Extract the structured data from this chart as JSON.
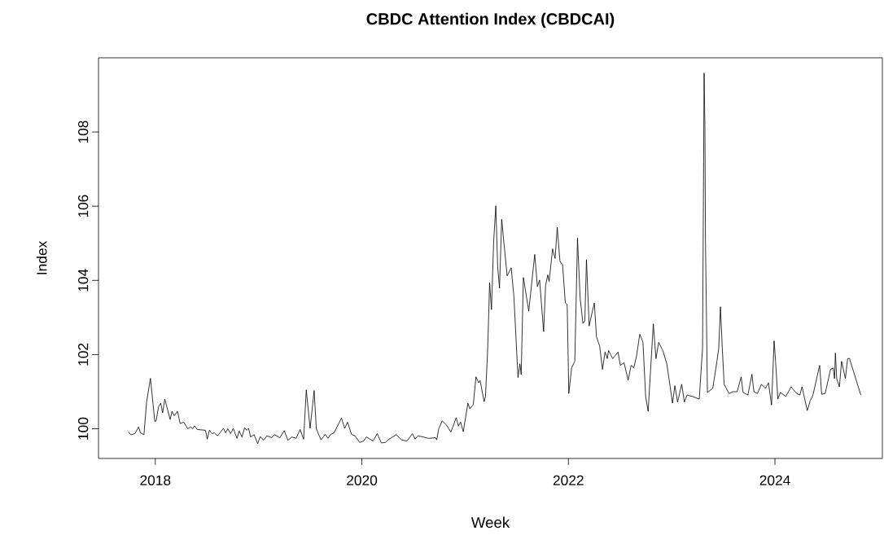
{
  "chart_data": {
    "type": "line",
    "title": "CBDC Attention Index (CBDCAI)",
    "xlabel": "Week",
    "ylabel": "Index",
    "xlim": [
      2017.45,
      2025.04
    ],
    "ylim": [
      99.2,
      110.0
    ],
    "xticks": [
      2018,
      2020,
      2022,
      2024
    ],
    "yticks": [
      100,
      102,
      104,
      106,
      108
    ],
    "marker": "none",
    "line_style": "solid",
    "x": [
      2017.738,
      2017.764,
      2017.803,
      2017.838,
      2017.856,
      2017.89,
      2017.916,
      2017.953,
      2017.995,
      2018.008,
      2018.031,
      2018.052,
      2018.071,
      2018.092,
      2018.144,
      2018.162,
      2018.183,
      2018.215,
      2018.241,
      2018.275,
      2018.314,
      2018.341,
      2018.362,
      2018.38,
      2018.406,
      2018.485,
      2018.503,
      2018.524,
      2018.55,
      2018.571,
      2018.603,
      2018.66,
      2018.681,
      2018.702,
      2018.729,
      2018.755,
      2018.791,
      2018.812,
      2018.839,
      2018.865,
      2018.886,
      2018.904,
      2018.922,
      2018.957,
      2018.991,
      2019.017,
      2019.048,
      2019.08,
      2019.127,
      2019.153,
      2019.206,
      2019.248,
      2019.284,
      2019.324,
      2019.363,
      2019.402,
      2019.436,
      2019.462,
      2019.499,
      2019.538,
      2019.559,
      2019.604,
      2019.646,
      2019.672,
      2019.698,
      2019.73,
      2019.803,
      2019.834,
      2019.861,
      2019.9,
      2019.934,
      2019.979,
      2020.018,
      2020.044,
      2020.109,
      2020.149,
      2020.188,
      2020.227,
      2020.254,
      2020.332,
      2020.385,
      2020.437,
      2020.49,
      2020.516,
      2020.542,
      2020.594,
      2020.647,
      2020.712,
      2020.725,
      2020.744,
      2020.778,
      2020.817,
      2020.862,
      2020.914,
      2020.935,
      2020.956,
      2020.982,
      2021.027,
      2021.045,
      2021.079,
      2021.105,
      2021.131,
      2021.145,
      2021.184,
      2021.197,
      2021.218,
      2021.237,
      2021.255,
      2021.276,
      2021.297,
      2021.315,
      2021.333,
      2021.354,
      2021.375,
      2021.407,
      2021.446,
      2021.472,
      2021.512,
      2021.53,
      2021.543,
      2021.564,
      2021.616,
      2021.674,
      2021.7,
      2021.721,
      2021.76,
      2021.779,
      2021.8,
      2021.813,
      2021.847,
      2021.871,
      2021.892,
      2021.918,
      2021.944,
      2021.97,
      2021.988,
      2022.004,
      2022.031,
      2022.062,
      2022.088,
      2022.114,
      2022.141,
      2022.159,
      2022.175,
      2022.201,
      2022.232,
      2022.251,
      2022.272,
      2022.303,
      2022.33,
      2022.355,
      2022.377,
      2022.389,
      2022.429,
      2022.481,
      2022.502,
      2022.539,
      2022.578,
      2022.607,
      2022.633,
      2022.66,
      2022.691,
      2022.722,
      2022.748,
      2022.772,
      2022.822,
      2022.848,
      2022.874,
      2022.914,
      2022.953,
      2023.008,
      2023.031,
      2023.057,
      2023.097,
      2023.123,
      2023.149,
      2023.202,
      2023.267,
      2023.299,
      2023.314,
      2023.322,
      2023.327,
      2023.346,
      2023.398,
      2023.438,
      2023.456,
      2023.472,
      2023.49,
      2023.508,
      2023.555,
      2023.595,
      2023.634,
      2023.673,
      2023.691,
      2023.738,
      2023.777,
      2023.796,
      2023.83,
      2023.869,
      2023.908,
      2023.937,
      2023.967,
      2023.992,
      2024.006,
      2024.028,
      2024.053,
      2024.105,
      2024.157,
      2024.21,
      2024.241,
      2024.262,
      2024.313,
      2024.341,
      2024.368,
      2024.433,
      2024.452,
      2024.486,
      2024.538,
      2024.564,
      2024.577,
      2024.585,
      2024.598,
      2024.624,
      2024.645,
      2024.682,
      2024.703,
      2024.721,
      2024.831
    ],
    "series": [
      {
        "color": "#000000",
        "values": [
          99.91,
          99.84,
          99.87,
          100.05,
          99.89,
          99.84,
          100.73,
          101.36,
          100.2,
          100.21,
          100.59,
          100.69,
          100.43,
          100.8,
          100.25,
          100.47,
          100.35,
          100.47,
          100.14,
          100.18,
          100.0,
          100.05,
          100.0,
          100.08,
          99.98,
          99.96,
          99.72,
          99.96,
          99.87,
          99.89,
          99.81,
          100.01,
          99.89,
          100.0,
          99.87,
          100.01,
          99.74,
          99.94,
          99.78,
          100.03,
          99.96,
          100.01,
          99.78,
          99.84,
          99.6,
          99.79,
          99.69,
          99.81,
          99.76,
          99.84,
          99.76,
          99.95,
          99.69,
          99.78,
          99.74,
          99.98,
          99.72,
          101.05,
          100.01,
          101.03,
          100.0,
          99.7,
          99.85,
          99.74,
          99.85,
          99.89,
          100.29,
          100.01,
          100.18,
          99.85,
          99.81,
          99.63,
          99.67,
          99.78,
          99.67,
          99.87,
          99.62,
          99.63,
          99.7,
          99.84,
          99.7,
          99.67,
          99.87,
          99.72,
          99.81,
          99.78,
          99.74,
          99.76,
          99.7,
          100.0,
          100.21,
          100.11,
          99.91,
          100.3,
          100.07,
          100.18,
          99.92,
          100.69,
          100.54,
          100.65,
          101.4,
          101.24,
          101.3,
          100.73,
          100.87,
          102.11,
          103.94,
          103.21,
          105.03,
          106.01,
          104.37,
          103.79,
          105.65,
          105.03,
          104.12,
          104.34,
          103.57,
          101.38,
          101.75,
          101.46,
          104.08,
          103.17,
          104.7,
          103.83,
          104.01,
          102.62,
          103.86,
          104.15,
          103.97,
          104.85,
          104.59,
          105.43,
          104.52,
          104.41,
          103.39,
          103.35,
          100.95,
          101.64,
          101.82,
          105.14,
          103.5,
          102.84,
          102.91,
          104.56,
          102.77,
          103.17,
          103.39,
          102.48,
          102.22,
          101.6,
          102.07,
          101.89,
          102.11,
          101.89,
          102.07,
          101.71,
          101.78,
          101.31,
          101.71,
          101.64,
          101.97,
          102.55,
          102.33,
          100.87,
          100.47,
          102.83,
          101.89,
          102.33,
          102.11,
          101.75,
          100.69,
          101.16,
          100.72,
          101.2,
          100.72,
          100.91,
          100.87,
          100.8,
          102.18,
          109.59,
          108.09,
          105.1,
          100.98,
          101.09,
          101.82,
          102.18,
          103.29,
          102.18,
          101.2,
          100.95,
          101.0,
          101.0,
          101.4,
          100.98,
          100.91,
          101.47,
          101.0,
          100.95,
          101.2,
          101.09,
          101.24,
          100.64,
          102.37,
          101.82,
          100.8,
          100.98,
          100.87,
          101.13,
          100.95,
          100.91,
          101.13,
          100.49,
          100.75,
          100.91,
          101.71,
          100.93,
          100.95,
          101.6,
          101.64,
          101.35,
          102.04,
          101.35,
          101.13,
          101.82,
          101.35,
          101.89,
          101.9,
          100.91
        ]
      }
    ]
  }
}
